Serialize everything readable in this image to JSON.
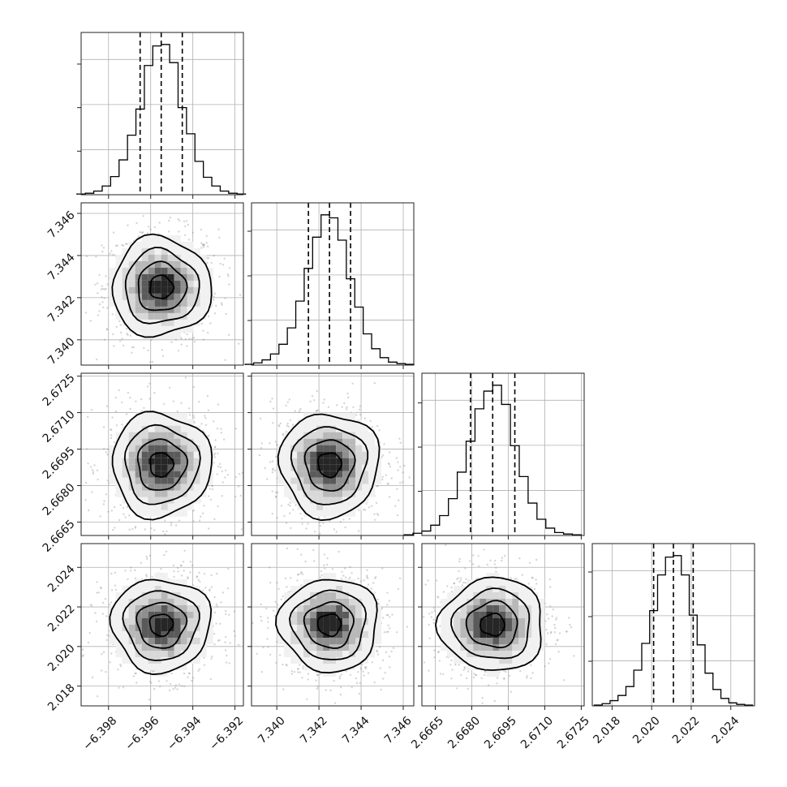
{
  "chart_data": {
    "type": "corner",
    "grid": true,
    "parameters": [
      {
        "range": [
          -6.3993,
          -6.3916
        ],
        "ticks": [
          -6.398,
          -6.396,
          -6.394,
          -6.392
        ],
        "tick_labels": [
          "−6.398",
          "−6.396",
          "−6.394",
          "−6.392"
        ],
        "quantiles": [
          -6.3965,
          -6.3955,
          -6.3945
        ],
        "median": -6.3955,
        "sigma": 0.001,
        "histogram_counts": [
          1,
          2,
          5,
          12,
          25,
          48,
          82,
          118,
          178,
          205,
          207,
          182,
          120,
          84,
          46,
          24,
          12,
          5,
          2,
          1
        ]
      },
      {
        "range": [
          7.3388,
          7.3465
        ],
        "ticks": [
          7.34,
          7.342,
          7.344,
          7.346
        ],
        "tick_labels": [
          "7.340",
          "7.342",
          "7.344",
          "7.346"
        ],
        "quantiles": [
          7.3415,
          7.3425,
          7.3435
        ],
        "median": 7.3425,
        "sigma": 0.001,
        "histogram_counts": [
          1,
          3,
          7,
          15,
          28,
          50,
          86,
          130,
          172,
          202,
          198,
          168,
          116,
          78,
          42,
          22,
          10,
          4,
          2,
          1
        ]
      },
      {
        "range": [
          2.66595,
          2.67262
        ],
        "ticks": [
          2.6665,
          2.668,
          2.6695,
          2.671,
          2.6725
        ],
        "tick_labels": [
          "2.6665",
          "2.6680",
          "2.6695",
          "2.6710",
          "2.6725"
        ],
        "quantiles": [
          2.66795,
          2.66886,
          2.66977
        ],
        "median": 2.66886,
        "sigma": 0.00091,
        "histogram_counts": [
          1,
          3,
          6,
          14,
          27,
          50,
          86,
          128,
          172,
          196,
          204,
          178,
          122,
          80,
          44,
          22,
          10,
          4,
          2,
          1
        ]
      },
      {
        "range": [
          2.017,
          2.0252
        ],
        "ticks": [
          2.018,
          2.02,
          2.022,
          2.024
        ],
        "tick_labels": [
          "2.018",
          "2.020",
          "2.022",
          "2.024"
        ],
        "quantiles": [
          2.0201,
          2.0211,
          2.0221
        ],
        "median": 2.0211,
        "sigma": 0.001,
        "histogram_counts": [
          1,
          3,
          7,
          14,
          26,
          48,
          84,
          128,
          176,
          200,
          202,
          176,
          122,
          82,
          44,
          22,
          10,
          4,
          2,
          1
        ]
      }
    ],
    "colors": {
      "contour": "#000000",
      "density": "#000000",
      "points": "#888888"
    }
  }
}
